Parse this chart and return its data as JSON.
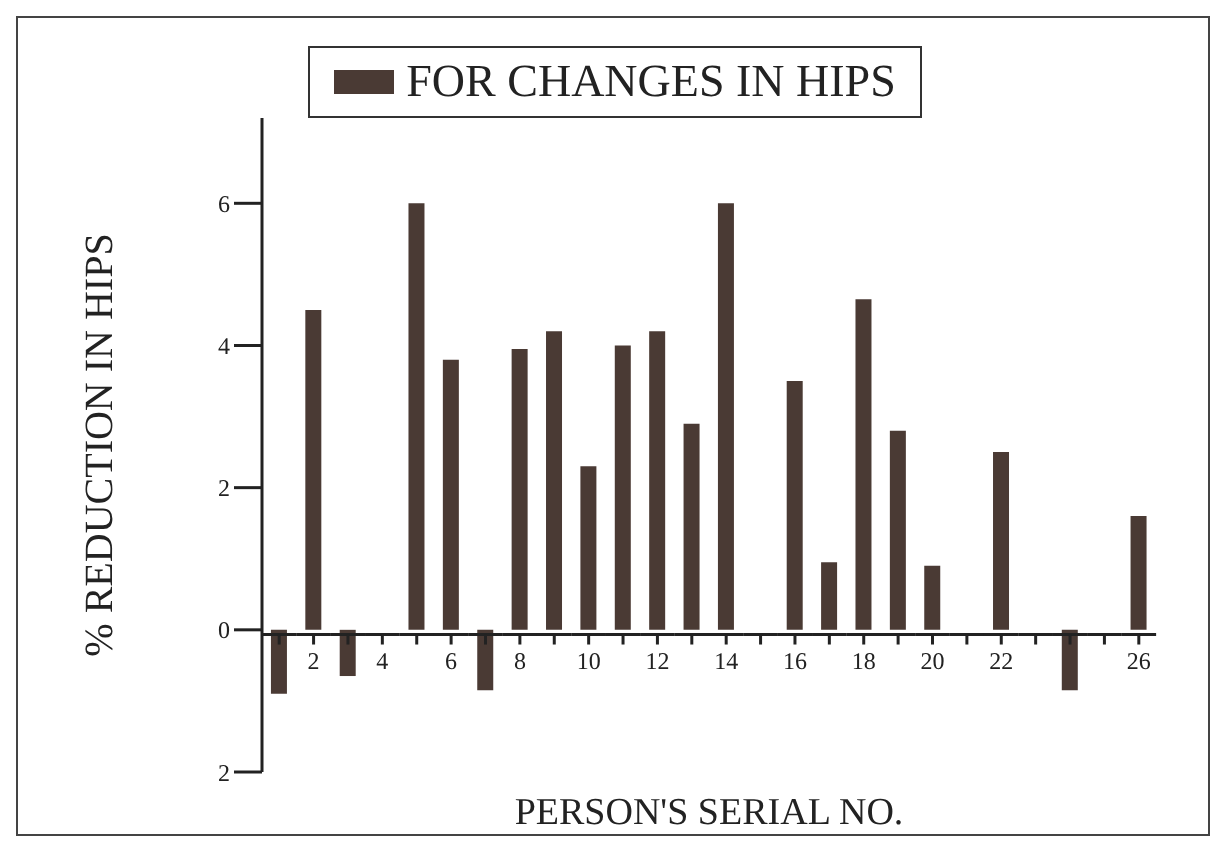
{
  "chart_data": {
    "type": "bar",
    "xlabel": "PERSON'S SERIAL NO.",
    "ylabel": "% REDUCTION IN HIPS",
    "categories": [
      null,
      "2",
      null,
      "4",
      null,
      "6",
      null,
      "8",
      null,
      "10",
      null,
      "12",
      null,
      "14",
      null,
      "16",
      null,
      "18",
      null,
      "20",
      null,
      "22",
      null,
      null,
      null,
      "26"
    ],
    "series": [
      {
        "name": "FOR CHANGES IN HIPS",
        "color": "#4a3a34",
        "values": [
          -0.9,
          4.5,
          -0.65,
          0,
          6.0,
          3.8,
          -0.85,
          3.95,
          4.2,
          2.3,
          4.0,
          4.2,
          2.9,
          6.0,
          0,
          3.5,
          0.95,
          4.65,
          2.8,
          0.9,
          0,
          2.5,
          0,
          -0.85,
          0,
          1.6
        ]
      }
    ],
    "ylim": [
      -2,
      7.2
    ],
    "yticks": [
      {
        "value": -2,
        "label": "2"
      },
      0,
      2,
      4,
      6
    ],
    "legend": "top"
  }
}
